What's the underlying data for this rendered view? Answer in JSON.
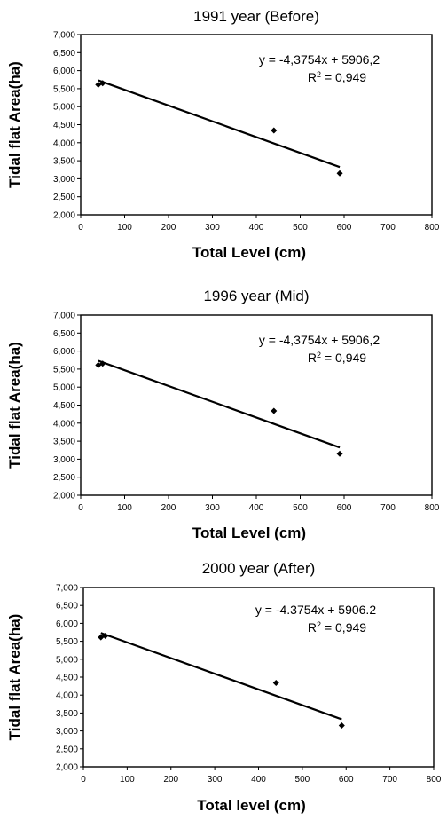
{
  "chart_data": [
    {
      "type": "scatter",
      "title": "1991 year (Before)",
      "xlabel": "Total Level (cm)",
      "ylabel": "Tidal flat Area(ha)",
      "xlim": [
        0,
        800
      ],
      "ylim": [
        2000,
        7000
      ],
      "x_ticks": [
        "0",
        "100",
        "200",
        "300",
        "400",
        "500",
        "600",
        "700",
        "800"
      ],
      "y_ticks": [
        "2,000",
        "2,500",
        "3,000",
        "3,500",
        "4,000",
        "4,500",
        "5,000",
        "5,500",
        "6,000",
        "6,500",
        "7,000"
      ],
      "points": [
        {
          "x": 40,
          "y": 5610
        },
        {
          "x": 50,
          "y": 5650
        },
        {
          "x": 440,
          "y": 4340
        },
        {
          "x": 590,
          "y": 3150
        }
      ],
      "trendline": {
        "slope": -4.3754,
        "intercept": 5906.2,
        "x_range": [
          40,
          590
        ]
      },
      "equation": "y = -4,3754x + 5906,2",
      "r2_prefix": "R",
      "r2_sup": "2",
      "r2_value": " = 0,949",
      "grid": false,
      "legend": "none"
    },
    {
      "type": "scatter",
      "title": "1996 year (Mid)",
      "xlabel": "Total Level (cm)",
      "ylabel": "Tidal flat Area(ha)",
      "xlim": [
        0,
        800
      ],
      "ylim": [
        2000,
        7000
      ],
      "x_ticks": [
        "0",
        "100",
        "200",
        "300",
        "400",
        "500",
        "600",
        "700",
        "800"
      ],
      "y_ticks": [
        "2,000",
        "2,500",
        "3,000",
        "3,500",
        "4,000",
        "4,500",
        "5,000",
        "5,500",
        "6,000",
        "6,500",
        "7,000"
      ],
      "points": [
        {
          "x": 40,
          "y": 5610
        },
        {
          "x": 50,
          "y": 5650
        },
        {
          "x": 440,
          "y": 4340
        },
        {
          "x": 590,
          "y": 3150
        }
      ],
      "trendline": {
        "slope": -4.3754,
        "intercept": 5906.2,
        "x_range": [
          40,
          590
        ]
      },
      "equation": "y = -4,3754x + 5906,2",
      "r2_prefix": "R",
      "r2_sup": "2",
      "r2_value": " = 0,949",
      "grid": false,
      "legend": "none"
    },
    {
      "type": "scatter",
      "title": "2000 year (After)",
      "xlabel": "Total level (cm)",
      "ylabel": "Tidal flat Area(ha)",
      "xlim": [
        0,
        800
      ],
      "ylim": [
        2000,
        7000
      ],
      "x_ticks": [
        "0",
        "100",
        "200",
        "300",
        "400",
        "500",
        "600",
        "700",
        "800"
      ],
      "y_ticks": [
        "2,000",
        "2,500",
        "3,000",
        "3,500",
        "4,000",
        "4,500",
        "5,000",
        "5,500",
        "6,000",
        "6,500",
        "7,000"
      ],
      "points": [
        {
          "x": 40,
          "y": 5610
        },
        {
          "x": 50,
          "y": 5650
        },
        {
          "x": 440,
          "y": 4340
        },
        {
          "x": 590,
          "y": 3150
        }
      ],
      "trendline": {
        "slope": -4.3754,
        "intercept": 5906.2,
        "x_range": [
          40,
          590
        ]
      },
      "equation": "y = -4.3754x + 5906.2",
      "r2_prefix": "R",
      "r2_sup": "2",
      "r2_value": " = 0,949",
      "grid": false,
      "legend": "none"
    }
  ]
}
